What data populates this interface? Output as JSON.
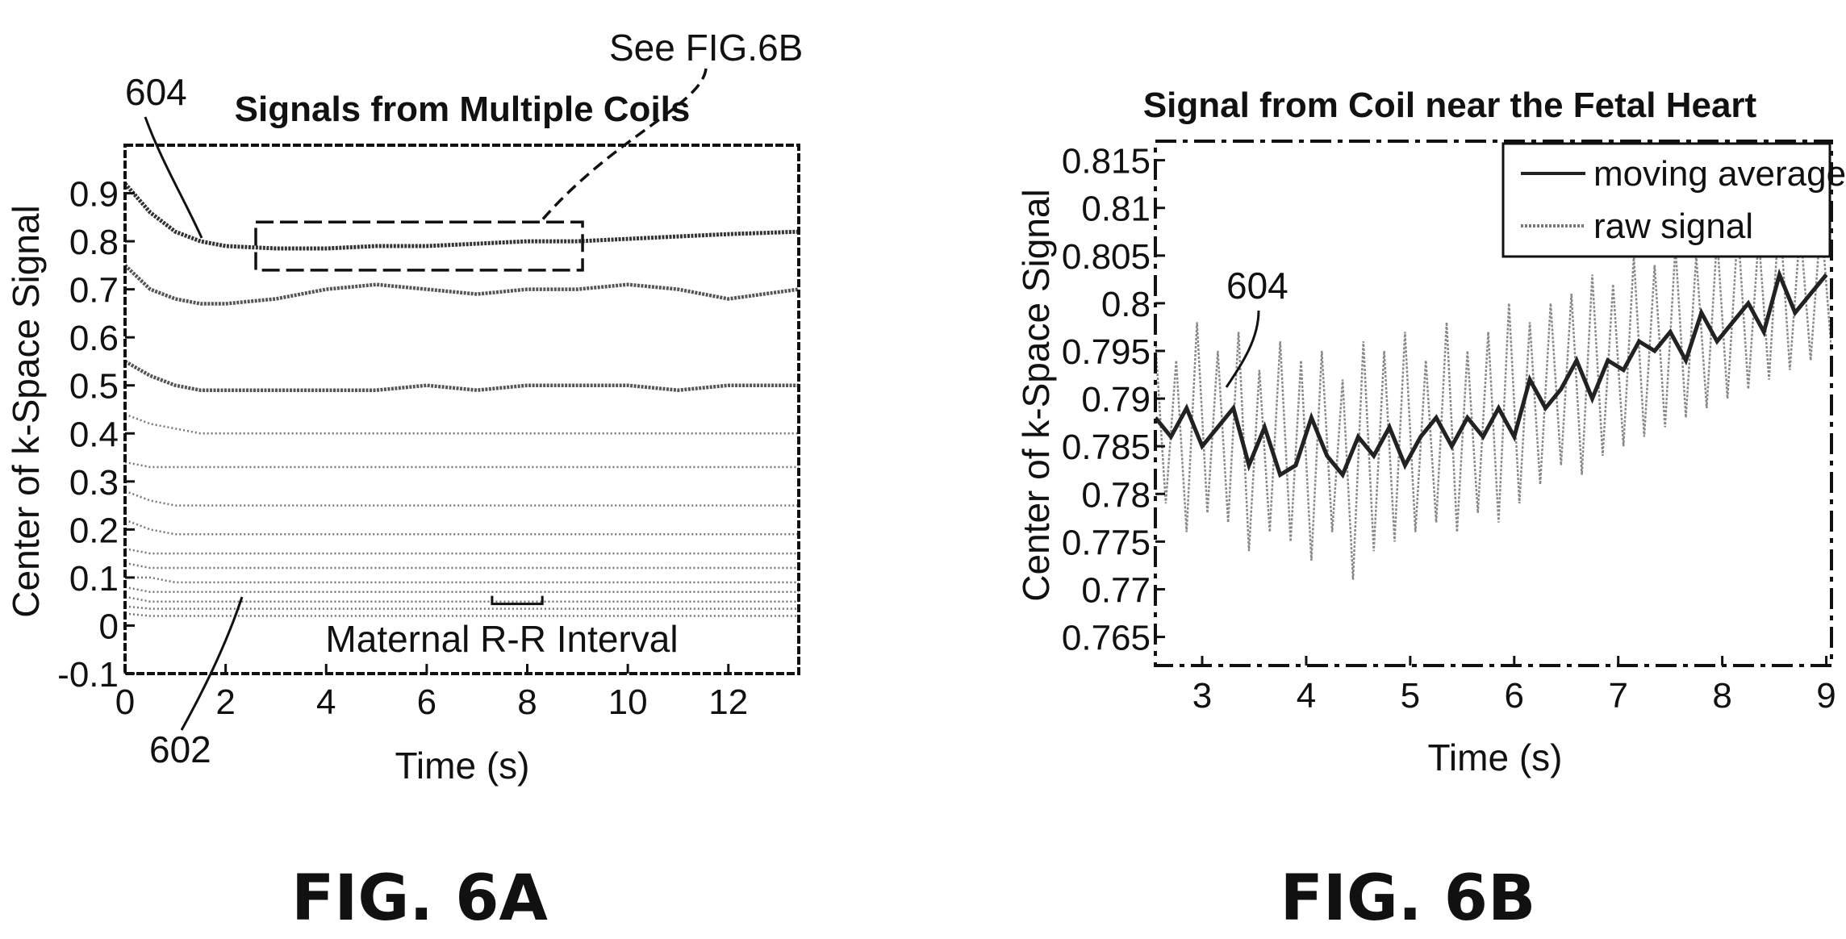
{
  "chart_data": [
    {
      "type": "line",
      "title": "Signals from Multiple Coils",
      "xlabel": "Time (s)",
      "ylabel": "Center of k-Space Signal",
      "xlim": [
        0,
        13.4
      ],
      "ylim": [
        -0.1,
        1.0
      ],
      "xticks": [
        "0",
        "2",
        "4",
        "6",
        "8",
        "10",
        "12"
      ],
      "yticks": [
        "-0.1",
        "0",
        "0.1",
        "0.2",
        "0.3",
        "0.4",
        "0.5",
        "0.6",
        "0.7",
        "0.8",
        "0.9"
      ],
      "grid": false,
      "series": [
        {
          "x": [
            0,
            0.5,
            1,
            1.5,
            2,
            3,
            4,
            5,
            6,
            7,
            8,
            9,
            10,
            11,
            12,
            13.4
          ],
          "values": [
            0.92,
            0.86,
            0.82,
            0.8,
            0.79,
            0.785,
            0.785,
            0.79,
            0.79,
            0.795,
            0.8,
            0.8,
            0.805,
            0.81,
            0.815,
            0.82
          ]
        },
        {
          "x": [
            0,
            0.5,
            1,
            1.5,
            2,
            3,
            4,
            5,
            6,
            7,
            8,
            9,
            10,
            11,
            12,
            13.4
          ],
          "values": [
            0.75,
            0.7,
            0.68,
            0.67,
            0.67,
            0.68,
            0.7,
            0.71,
            0.7,
            0.69,
            0.7,
            0.7,
            0.71,
            0.7,
            0.68,
            0.7
          ]
        },
        {
          "x": [
            0,
            0.5,
            1,
            1.5,
            2,
            3,
            4,
            5,
            6,
            7,
            8,
            9,
            10,
            11,
            12,
            13.4
          ],
          "values": [
            0.55,
            0.52,
            0.5,
            0.49,
            0.49,
            0.49,
            0.49,
            0.49,
            0.5,
            0.49,
            0.5,
            0.5,
            0.5,
            0.49,
            0.5,
            0.5
          ]
        },
        {
          "x": [
            0,
            0.5,
            1,
            1.5,
            2,
            3,
            4,
            5,
            6,
            7,
            8,
            9,
            10,
            11,
            12,
            13.4
          ],
          "values": [
            0.44,
            0.42,
            0.41,
            0.4,
            0.4,
            0.4,
            0.4,
            0.4,
            0.4,
            0.4,
            0.4,
            0.4,
            0.4,
            0.4,
            0.4,
            0.4
          ]
        },
        {
          "x": [
            0,
            0.5,
            1,
            1.5,
            2,
            3,
            4,
            5,
            6,
            7,
            8,
            9,
            10,
            11,
            12,
            13.4
          ],
          "values": [
            0.34,
            0.33,
            0.33,
            0.33,
            0.33,
            0.33,
            0.33,
            0.33,
            0.33,
            0.33,
            0.33,
            0.33,
            0.33,
            0.33,
            0.33,
            0.33
          ]
        },
        {
          "x": [
            0,
            0.5,
            1,
            1.5,
            2,
            3,
            4,
            5,
            6,
            7,
            8,
            9,
            10,
            11,
            12,
            13.4
          ],
          "values": [
            0.28,
            0.26,
            0.25,
            0.25,
            0.25,
            0.25,
            0.25,
            0.25,
            0.25,
            0.25,
            0.25,
            0.25,
            0.25,
            0.25,
            0.25,
            0.25
          ]
        },
        {
          "x": [
            0,
            0.5,
            1,
            1.5,
            2,
            3,
            4,
            5,
            6,
            7,
            8,
            9,
            10,
            11,
            12,
            13.4
          ],
          "values": [
            0.22,
            0.2,
            0.19,
            0.19,
            0.19,
            0.19,
            0.19,
            0.19,
            0.19,
            0.19,
            0.19,
            0.19,
            0.19,
            0.19,
            0.19,
            0.19
          ]
        },
        {
          "x": [
            0,
            0.5,
            1,
            1.5,
            2,
            3,
            4,
            5,
            6,
            7,
            8,
            9,
            10,
            11,
            12,
            13.4
          ],
          "values": [
            0.16,
            0.15,
            0.15,
            0.15,
            0.15,
            0.15,
            0.15,
            0.15,
            0.15,
            0.15,
            0.15,
            0.15,
            0.15,
            0.15,
            0.15,
            0.15
          ]
        },
        {
          "x": [
            0,
            0.5,
            1,
            1.5,
            2,
            3,
            4,
            5,
            6,
            7,
            8,
            9,
            10,
            11,
            12,
            13.4
          ],
          "values": [
            0.13,
            0.12,
            0.12,
            0.12,
            0.12,
            0.12,
            0.12,
            0.12,
            0.12,
            0.12,
            0.12,
            0.12,
            0.12,
            0.12,
            0.12,
            0.12
          ]
        },
        {
          "x": [
            0,
            0.5,
            1,
            1.5,
            2,
            3,
            4,
            5,
            6,
            7,
            8,
            9,
            10,
            11,
            12,
            13.4
          ],
          "values": [
            0.1,
            0.1,
            0.09,
            0.09,
            0.09,
            0.09,
            0.09,
            0.09,
            0.09,
            0.09,
            0.09,
            0.09,
            0.09,
            0.09,
            0.09,
            0.09
          ]
        },
        {
          "x": [
            0,
            0.5,
            1,
            1.5,
            2,
            3,
            4,
            5,
            6,
            7,
            8,
            9,
            10,
            11,
            12,
            13.4
          ],
          "values": [
            0.08,
            0.07,
            0.07,
            0.07,
            0.07,
            0.07,
            0.07,
            0.07,
            0.07,
            0.07,
            0.07,
            0.07,
            0.07,
            0.07,
            0.07,
            0.07
          ]
        },
        {
          "x": [
            0,
            0.5,
            1,
            1.5,
            2,
            3,
            4,
            5,
            6,
            7,
            8,
            9,
            10,
            11,
            12,
            13.4
          ],
          "values": [
            0.06,
            0.05,
            0.05,
            0.05,
            0.05,
            0.05,
            0.05,
            0.05,
            0.05,
            0.05,
            0.05,
            0.05,
            0.05,
            0.05,
            0.05,
            0.05
          ]
        },
        {
          "x": [
            0,
            0.5,
            1,
            1.5,
            2,
            3,
            4,
            5,
            6,
            7,
            8,
            9,
            10,
            11,
            12,
            13.4
          ],
          "values": [
            0.04,
            0.035,
            0.035,
            0.035,
            0.035,
            0.035,
            0.035,
            0.035,
            0.035,
            0.035,
            0.035,
            0.035,
            0.035,
            0.035,
            0.035,
            0.035
          ]
        },
        {
          "x": [
            0,
            0.5,
            1,
            1.5,
            2,
            3,
            4,
            5,
            6,
            7,
            8,
            9,
            10,
            11,
            12,
            13.4
          ],
          "values": [
            0.025,
            0.02,
            0.02,
            0.02,
            0.02,
            0.02,
            0.02,
            0.02,
            0.02,
            0.02,
            0.02,
            0.02,
            0.02,
            0.02,
            0.02,
            0.02
          ]
        }
      ],
      "highlight_box": {
        "x": [
          2.6,
          9.1
        ],
        "y": [
          0.74,
          0.84
        ]
      },
      "rr_interval_bracket": {
        "x": [
          7.3,
          8.3
        ],
        "y": 0.045
      },
      "annotations": {
        "see_ref": "See FIG.6B",
        "ref_604": "604",
        "ref_602": "602",
        "rr_interval": "Maternal R-R Interval"
      },
      "figure_label": "FIG. 6A"
    },
    {
      "type": "line",
      "title": "Signal from Coil near the Fetal Heart",
      "xlabel": "Time (s)",
      "ylabel": "Center of k-Space Signal",
      "xlim": [
        2.55,
        9.05
      ],
      "ylim": [
        0.762,
        0.817
      ],
      "xticks": [
        "3",
        "4",
        "5",
        "6",
        "7",
        "8",
        "9"
      ],
      "yticks": [
        "0.765",
        "0.77",
        "0.775",
        "0.78",
        "0.785",
        "0.79",
        "0.795",
        "0.8",
        "0.805",
        "0.81",
        "0.815"
      ],
      "grid": false,
      "legend": "top-right",
      "series": [
        {
          "name": "moving average",
          "x": [
            2.55,
            2.7,
            2.85,
            3.0,
            3.15,
            3.3,
            3.45,
            3.6,
            3.75,
            3.9,
            4.05,
            4.2,
            4.35,
            4.5,
            4.65,
            4.8,
            4.95,
            5.1,
            5.25,
            5.4,
            5.55,
            5.7,
            5.85,
            6.0,
            6.15,
            6.3,
            6.45,
            6.6,
            6.75,
            6.9,
            7.05,
            7.2,
            7.35,
            7.5,
            7.65,
            7.8,
            7.95,
            8.1,
            8.25,
            8.4,
            8.55,
            8.7,
            8.85,
            9.0
          ],
          "values": [
            0.788,
            0.786,
            0.789,
            0.785,
            0.787,
            0.789,
            0.783,
            0.787,
            0.782,
            0.783,
            0.788,
            0.784,
            0.782,
            0.786,
            0.784,
            0.787,
            0.783,
            0.786,
            0.788,
            0.785,
            0.788,
            0.786,
            0.789,
            0.786,
            0.792,
            0.789,
            0.791,
            0.794,
            0.79,
            0.794,
            0.793,
            0.796,
            0.795,
            0.797,
            0.794,
            0.799,
            0.796,
            0.798,
            0.8,
            0.797,
            0.803,
            0.799,
            0.801,
            0.803
          ]
        },
        {
          "name": "raw signal",
          "x": [
            2.55,
            2.65,
            2.75,
            2.85,
            2.95,
            3.05,
            3.15,
            3.25,
            3.35,
            3.45,
            3.55,
            3.65,
            3.75,
            3.85,
            3.95,
            4.05,
            4.15,
            4.25,
            4.35,
            4.45,
            4.55,
            4.65,
            4.75,
            4.85,
            4.95,
            5.05,
            5.15,
            5.25,
            5.35,
            5.45,
            5.55,
            5.65,
            5.75,
            5.85,
            5.95,
            6.05,
            6.15,
            6.25,
            6.35,
            6.45,
            6.55,
            6.65,
            6.75,
            6.85,
            6.95,
            7.05,
            7.15,
            7.25,
            7.35,
            7.45,
            7.55,
            7.65,
            7.75,
            7.85,
            7.95,
            8.05,
            8.15,
            8.25,
            8.35,
            8.45,
            8.55,
            8.65,
            8.75,
            8.85,
            8.95,
            9.05
          ],
          "values": [
            0.796,
            0.779,
            0.794,
            0.776,
            0.798,
            0.778,
            0.795,
            0.777,
            0.797,
            0.774,
            0.793,
            0.776,
            0.796,
            0.775,
            0.794,
            0.773,
            0.795,
            0.776,
            0.792,
            0.771,
            0.796,
            0.774,
            0.795,
            0.775,
            0.797,
            0.776,
            0.794,
            0.777,
            0.798,
            0.776,
            0.795,
            0.778,
            0.797,
            0.777,
            0.8,
            0.779,
            0.798,
            0.781,
            0.8,
            0.783,
            0.801,
            0.782,
            0.803,
            0.784,
            0.802,
            0.785,
            0.805,
            0.786,
            0.804,
            0.787,
            0.806,
            0.788,
            0.805,
            0.789,
            0.807,
            0.79,
            0.808,
            0.791,
            0.807,
            0.792,
            0.81,
            0.793,
            0.808,
            0.794,
            0.809,
            0.795
          ]
        }
      ],
      "annotations": {
        "ref_604": "604"
      },
      "figure_label": "FIG. 6B"
    }
  ]
}
